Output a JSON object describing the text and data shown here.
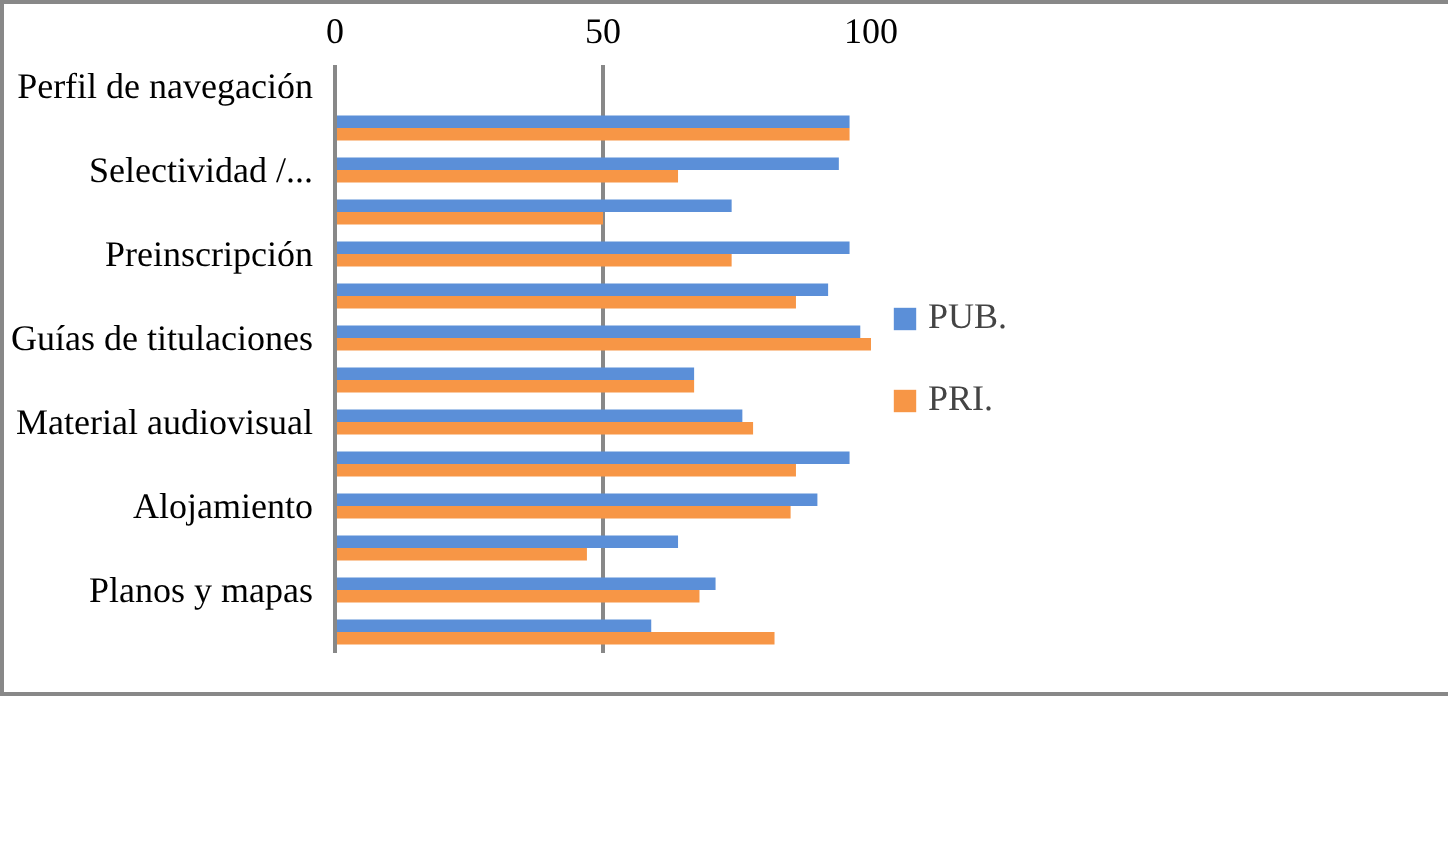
{
  "chart_data": {
    "type": "bar",
    "orientation": "horizontal",
    "categories": [
      "Perfil de navegación",
      null,
      "Selectividad /...",
      null,
      "Preinscripción",
      null,
      "Guías de titulaciones",
      null,
      "Material audiovisual",
      null,
      "Alojamiento",
      null,
      "Planos y mapas",
      null
    ],
    "series": [
      {
        "name": "PUB.",
        "color": "#5b8fd8",
        "values": [
          null,
          96,
          94,
          74,
          96,
          92,
          98,
          67,
          76,
          96,
          90,
          64,
          71,
          59
        ]
      },
      {
        "name": "PRI.",
        "color": "#f79646",
        "values": [
          null,
          96,
          64,
          50,
          74,
          86,
          100,
          67,
          78,
          86,
          85,
          47,
          68,
          82
        ]
      }
    ],
    "xlim": [
      0,
      100
    ],
    "xticks": [
      0,
      50,
      100
    ],
    "grid": "x",
    "legend": "right"
  }
}
